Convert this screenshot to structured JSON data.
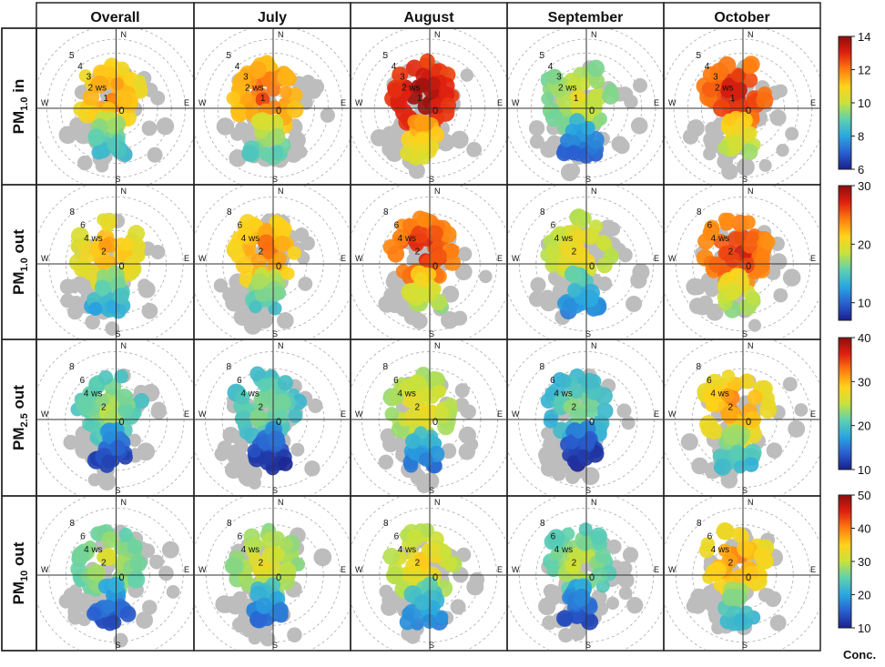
{
  "chart_data": {
    "type": "polar-bivariate-grid",
    "columns": [
      "Overall",
      "July",
      "August",
      "September",
      "October"
    ],
    "rows": [
      {
        "label": "PM",
        "subscript": "1.0",
        "suffix": " in",
        "scale": [
          6,
          14
        ],
        "ticks": [
          6,
          8,
          10,
          12,
          14
        ],
        "ring_labels": [
          "5",
          "4",
          "3",
          "2 ws",
          "1"
        ],
        "ring_values": [
          5,
          4,
          3,
          2,
          1
        ]
      },
      {
        "label": "PM",
        "subscript": "1.0",
        "suffix": " out",
        "scale": [
          7,
          30
        ],
        "ticks": [
          10,
          20,
          30
        ],
        "ring_labels": [
          "8",
          "6",
          "4 ws",
          "2"
        ],
        "ring_values": [
          8,
          6,
          4,
          2
        ]
      },
      {
        "label": "PM",
        "subscript": "2.5",
        "suffix": " out",
        "scale": [
          10,
          40
        ],
        "ticks": [
          10,
          20,
          30,
          40
        ],
        "ring_labels": [
          "8",
          "6",
          "4 ws",
          "2"
        ],
        "ring_values": [
          8,
          6,
          4,
          2
        ]
      },
      {
        "label": "PM",
        "subscript": "10",
        "suffix": " out",
        "scale": [
          10,
          50
        ],
        "ticks": [
          10,
          20,
          30,
          40,
          50
        ],
        "ring_labels": [
          "8",
          "6",
          "4 ws",
          "2"
        ],
        "ring_values": [
          8,
          6,
          4,
          2
        ]
      }
    ],
    "compass": {
      "n": "N",
      "e": "E",
      "s": "S",
      "w": "W"
    },
    "center_label": "0",
    "colorbar_label": "Conc.",
    "colormap": [
      "#1a1f8c",
      "#2a5fd0",
      "#29a7e0",
      "#5fd0b0",
      "#c8e23c",
      "#ffd21a",
      "#ff7d10",
      "#e02010",
      "#8c0d0d"
    ],
    "no_data_color": "#bdbdbd",
    "grid": true
  }
}
